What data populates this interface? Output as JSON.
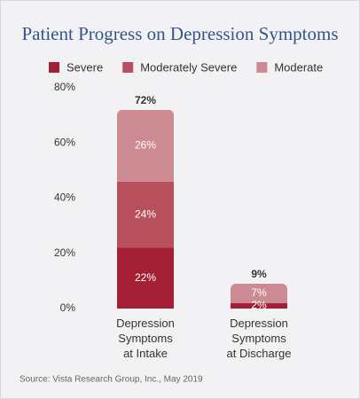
{
  "chart_data": {
    "type": "stacked-bar",
    "title": "Patient Progress on Depression Symptoms",
    "categories": [
      "Depression\nSymptoms\nat Intake",
      "Depression\nSymptoms\nat Discharge"
    ],
    "series": [
      {
        "name": "Severe",
        "color": "#a31f34",
        "values": [
          22,
          2
        ],
        "value_labels": [
          "22%",
          "2%"
        ]
      },
      {
        "name": "Moderately Severe",
        "color": "#b9505e",
        "values": [
          24,
          0
        ],
        "value_labels": [
          "24%",
          null
        ]
      },
      {
        "name": "Moderate",
        "color": "#cc8a92",
        "values": [
          26,
          7
        ],
        "value_labels": [
          "26%",
          "7%"
        ]
      }
    ],
    "totals": [
      72,
      9
    ],
    "total_labels": [
      "72%",
      "9%"
    ],
    "ylim": [
      0,
      80
    ],
    "yticks": [
      {
        "value": 0,
        "label": "0%"
      },
      {
        "value": 20,
        "label": "20%"
      },
      {
        "value": 40,
        "label": "40%"
      },
      {
        "value": 60,
        "label": "60%"
      },
      {
        "value": 80,
        "label": "80%"
      }
    ],
    "grid": false,
    "source": "Source: Vista Research Group, Inc., May 2019"
  }
}
